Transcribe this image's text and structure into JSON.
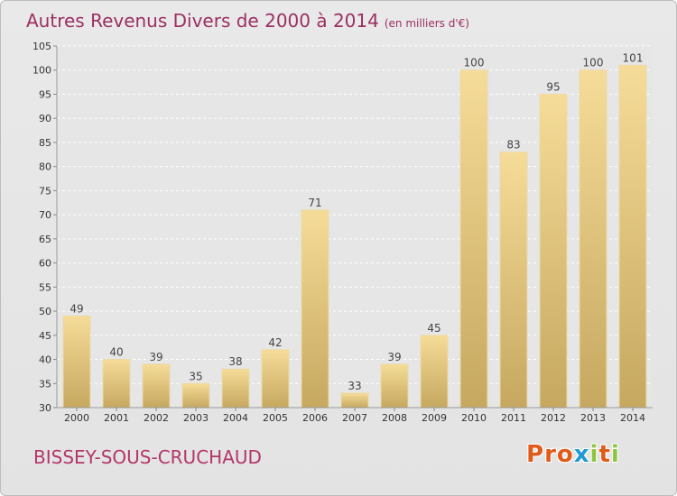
{
  "header": {
    "title": "Autres Revenus Divers de 2000 à 2014",
    "unit": "(en milliers d'€)"
  },
  "footer": {
    "place": "BISSEY-SOUS-CRUCHAUD",
    "logo": "Proxiti"
  },
  "colors": {
    "title": "#9b2f63",
    "place": "#b3366a",
    "bar_light": "#f3d993",
    "bar_dark": "#c4a65e",
    "background": "#e6e6e6",
    "logo_letters": [
      "#e05a1a",
      "#e05a1a",
      "#e05a1a",
      "#1f9ad6",
      "#8cc63f",
      "#e05a1a",
      "#8cc63f"
    ]
  },
  "chart_data": {
    "type": "bar",
    "categories": [
      "2000",
      "2001",
      "2002",
      "2003",
      "2004",
      "2005",
      "2006",
      "2007",
      "2008",
      "2009",
      "2010",
      "2011",
      "2012",
      "2013",
      "2014"
    ],
    "values": [
      49,
      40,
      39,
      35,
      38,
      42,
      71,
      33,
      39,
      45,
      100,
      83,
      95,
      100,
      101
    ],
    "title": "Autres Revenus Divers de 2000 à 2014",
    "subtitle": "(en milliers d'€)",
    "xlabel": "",
    "ylabel": "",
    "ylim": [
      30,
      105
    ],
    "yticks": [
      30,
      35,
      40,
      45,
      50,
      55,
      60,
      65,
      70,
      75,
      80,
      85,
      90,
      95,
      100,
      105
    ],
    "grid": true,
    "data_labels": true,
    "legend": "none"
  }
}
